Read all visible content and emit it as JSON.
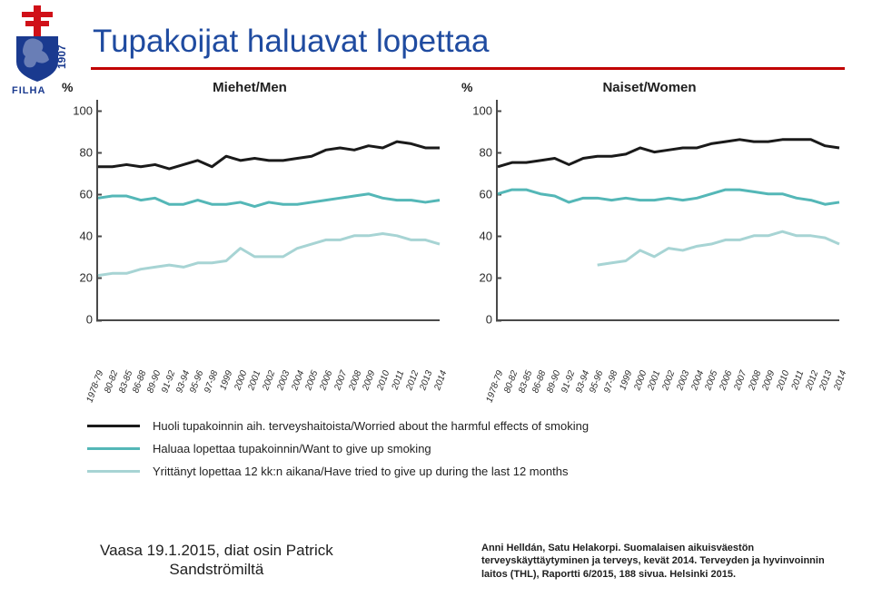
{
  "logo": {
    "org": "FILHA",
    "year": "1907",
    "cross_color": "#d01018",
    "lion_color": "#1a3a8f"
  },
  "title": "Tupakoijat haluavat lopettaa",
  "title_color": "#1f4ba0",
  "underline_color": "#c10000",
  "chart": {
    "ylabel": "%",
    "ylim": [
      0,
      105
    ],
    "yticks": [
      0,
      20,
      40,
      60,
      80,
      100
    ],
    "xcategories": [
      "1978-79",
      "80-82",
      "83-85",
      "86-88",
      "89-90",
      "91-92",
      "93-94",
      "95-96",
      "97-98",
      "1999",
      "2000",
      "2001",
      "2002",
      "2003",
      "2004",
      "2005",
      "2006",
      "2007",
      "2008",
      "2009",
      "2010",
      "2011",
      "2012",
      "2013",
      "2014"
    ],
    "axis_color": "#4a4a4a",
    "tick_fontsize": 11,
    "panels": [
      {
        "title": "Miehet/Men",
        "series": {
          "worried": [
            73,
            73,
            74,
            73,
            74,
            72,
            74,
            76,
            73,
            78,
            76,
            77,
            76,
            76,
            77,
            78,
            81,
            82,
            81,
            83,
            82,
            85,
            84,
            82,
            82
          ],
          "want_quit": [
            58,
            59,
            59,
            57,
            58,
            55,
            55,
            57,
            55,
            55,
            56,
            54,
            56,
            55,
            55,
            56,
            57,
            58,
            59,
            60,
            58,
            57,
            57,
            56,
            57
          ],
          "tried": [
            21,
            22,
            22,
            24,
            25,
            26,
            25,
            27,
            27,
            28,
            34,
            30,
            30,
            30,
            34,
            36,
            38,
            38,
            40,
            40,
            41,
            40,
            38,
            38,
            36
          ]
        }
      },
      {
        "title": "Naiset/Women",
        "series": {
          "worried": [
            73,
            75,
            75,
            76,
            77,
            74,
            77,
            78,
            78,
            79,
            82,
            80,
            81,
            82,
            82,
            84,
            85,
            86,
            85,
            85,
            86,
            86,
            86,
            83,
            82
          ],
          "want_quit": [
            60,
            62,
            62,
            60,
            59,
            56,
            58,
            58,
            57,
            58,
            57,
            57,
            58,
            57,
            58,
            60,
            62,
            62,
            61,
            60,
            60,
            58,
            57,
            55,
            56
          ],
          "tried": [
            null,
            null,
            null,
            null,
            null,
            null,
            null,
            26,
            27,
            28,
            33,
            30,
            34,
            33,
            35,
            36,
            38,
            38,
            40,
            40,
            42,
            40,
            40,
            39,
            36
          ]
        }
      }
    ]
  },
  "series_meta": {
    "worried": {
      "label": "Huoli tupakoinnin aih. terveyshaitoista/Worried about the harmful effects of smoking",
      "color": "#1a1a1a",
      "width": 3
    },
    "want_quit": {
      "label": "Haluaa lopettaa tupakoinnin/Want to give up smoking",
      "color": "#54b7b7",
      "width": 3
    },
    "tried": {
      "label": "Yrittänyt lopettaa 12 kk:n aikana/Have tried to give up during the last 12 months",
      "color": "#a7d4d4",
      "width": 3
    }
  },
  "series_order": [
    "worried",
    "want_quit",
    "tried"
  ],
  "footer_left": {
    "line1": "Vaasa 19.1.2015, diat osin Patrick",
    "line2": "Sandströmiltä"
  },
  "footer_right": "Anni Helldán, Satu Helakorpi. Suomalaisen aikuisväestön terveyskäyttäytyminen ja terveys, kevät 2014. Terveyden ja hyvinvoinnin laitos (THL), Raportti 6/2015, 188 sivua. Helsinki 2015."
}
